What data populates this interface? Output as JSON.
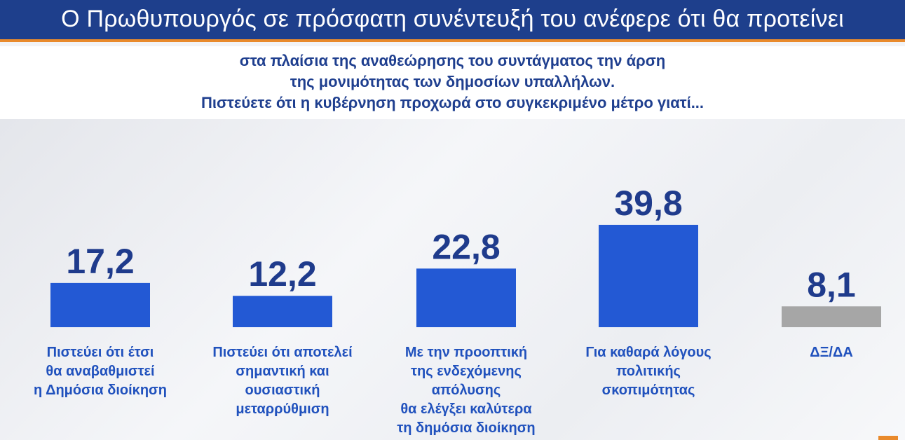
{
  "header": {
    "title": "Ο Πρωθυπουργός σε πρόσφατη συνέντευξή του ανέφερε ότι θα προτείνει"
  },
  "question": {
    "lines": [
      "στα πλαίσια της αναθεώρησης του συντάγματος την άρση",
      "της μονιμότητας των δημοσίων υπαλλήλων.",
      "Πιστεύετε ότι η κυβέρνηση προχωρά στο συγκεκριμένο μέτρο γιατί..."
    ]
  },
  "colors": {
    "bar_primary": "#2359d4",
    "bar_neutral": "#a6a6a6",
    "header_bg": "#1e3f8c",
    "accent": "#e98a2c"
  },
  "chart_data": {
    "type": "bar",
    "categories": [
      "Πιστεύει ότι έτσι θα αναβαθμιστεί η Δημόσια διοίκηση",
      "Πιστεύει ότι αποτελεί σημαντική και ουσιαστική μεταρρύθμιση",
      "Με την προοπτική της ενδεχόμενης απόλυσης θα ελέγξει καλύτερα τη δημόσια διοίκηση",
      "Για καθαρά λόγους πολιτικής σκοπιμότητας",
      "ΔΞ/ΔΑ"
    ],
    "category_lines": [
      [
        "Πιστεύει ότι έτσι",
        "θα αναβαθμιστεί",
        "η Δημόσια διοίκηση"
      ],
      [
        "Πιστεύει ότι αποτελεί",
        "σημαντική και",
        "ουσιαστική",
        "μεταρρύθμιση"
      ],
      [
        "Με την προοπτική",
        "της ενδεχόμενης",
        "απόλυσης",
        "θα ελέγξει καλύτερα",
        "τη δημόσια διοίκηση"
      ],
      [
        "Για καθαρά λόγους",
        "πολιτικής",
        "σκοπιμότητας"
      ],
      [
        "ΔΞ/ΔΑ"
      ]
    ],
    "values": [
      17.2,
      12.2,
      22.8,
      39.8,
      8.1
    ],
    "value_labels": [
      "17,2",
      "12,2",
      "22,8",
      "39,8",
      "8,1"
    ],
    "bar_colors": [
      "#2359d4",
      "#2359d4",
      "#2359d4",
      "#2359d4",
      "#a6a6a6"
    ],
    "ylim": [
      0,
      40
    ],
    "grid": false,
    "legend": "none",
    "title": "",
    "xlabel": "",
    "ylabel": ""
  }
}
